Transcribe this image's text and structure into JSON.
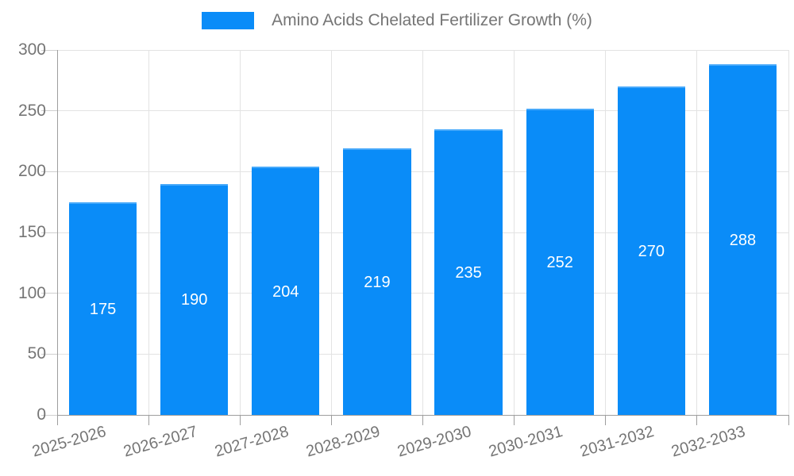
{
  "legend": {
    "label": "Amino Acids Chelated Fertilizer Growth (%)"
  },
  "chart_data": {
    "type": "bar",
    "title": "Amino Acids Chelated Fertilizer Growth (%)",
    "categories": [
      "2025-2026",
      "2026-2027",
      "2027-2028",
      "2028-2029",
      "2029-2030",
      "2030-2031",
      "2031-2032",
      "2032-2033"
    ],
    "values": [
      175,
      190,
      204,
      219,
      235,
      252,
      270,
      288
    ],
    "xlabel": "",
    "ylabel": "",
    "ylim": [
      0,
      300
    ],
    "ytick_step": 50,
    "ytick_labels": [
      "0",
      "50",
      "100",
      "150",
      "200",
      "250",
      "300"
    ],
    "grid": true,
    "legend_position": "top-center",
    "bar_color": "#0a8cf8",
    "value_label_color": "#ffffff",
    "axis_color": "#9e9e9e",
    "gridline_color": "#e3e3e3",
    "tick_label_color": "#757575",
    "value_labels_inside_bars": true
  }
}
